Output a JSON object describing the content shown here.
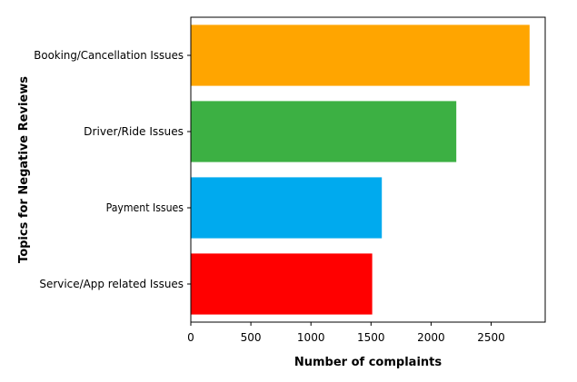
{
  "chart_data": {
    "type": "bar",
    "orientation": "horizontal",
    "categories": [
      "Booking/Cancellation Issues",
      "Driver/Ride Issues",
      "Payment Issues",
      "Service/App related Issues"
    ],
    "values": [
      2820,
      2210,
      1590,
      1510
    ],
    "colors": [
      "#FFA500",
      "#3CB043",
      "#00AAEE",
      "#FF0000"
    ],
    "xlabel": "Number of complaints",
    "ylabel": "Topics for Negative Reviews",
    "xlim": [
      0,
      2950
    ],
    "xticks": [
      0,
      500,
      1000,
      1500,
      2000,
      2500
    ],
    "xtick_labels": [
      "0",
      "500",
      "1000",
      "1500",
      "2000",
      "2500"
    ],
    "grid": false,
    "legend": "none"
  }
}
